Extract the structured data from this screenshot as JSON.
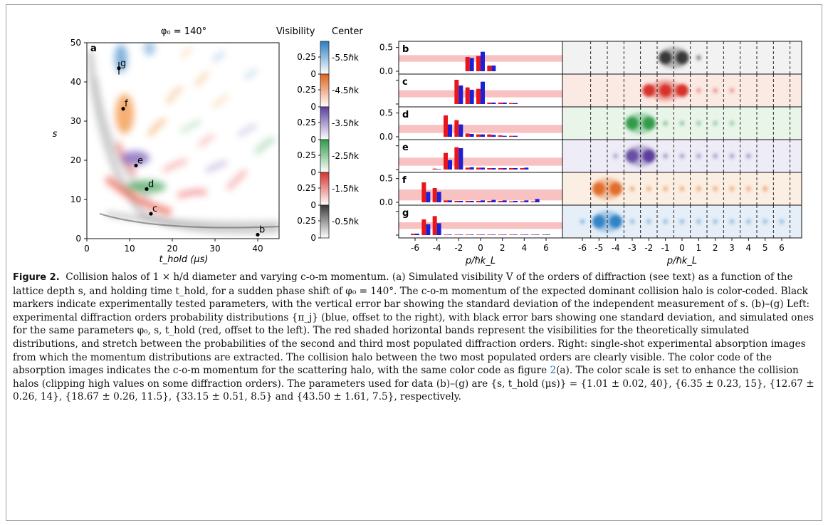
{
  "panel_a": {
    "title": "φ₀ = 140°",
    "panel_label": "a",
    "xlabel": "t_hold (μs)",
    "ylabel": "s",
    "x_ticks": [
      "0",
      "10",
      "20",
      "30",
      "40"
    ],
    "y_ticks": [
      "0",
      "10",
      "20",
      "30",
      "40",
      "50"
    ],
    "markers": [
      {
        "label": "b",
        "t_hold_us": 40,
        "s": 1.01,
        "s_err": 0.02
      },
      {
        "label": "c",
        "t_hold_us": 15,
        "s": 6.35,
        "s_err": 0.23
      },
      {
        "label": "d",
        "t_hold_us": 14,
        "s": 12.67,
        "s_err": 0.26
      },
      {
        "label": "e",
        "t_hold_us": 11.5,
        "s": 18.67,
        "s_err": 0.26
      },
      {
        "label": "f",
        "t_hold_us": 8.5,
        "s": 33.15,
        "s_err": 0.51
      },
      {
        "label": "g",
        "t_hold_us": 7.5,
        "s": 43.5,
        "s_err": 1.61
      }
    ]
  },
  "colorbar": {
    "header_left": "Visibility",
    "header_right": "Center",
    "bands": [
      {
        "center": "-5.5ℏk",
        "color": "#2a7ec2"
      },
      {
        "center": "-4.5ℏk",
        "color": "#e0641c"
      },
      {
        "center": "-3.5ℏk",
        "color": "#5b3e9c"
      },
      {
        "center": "-2.5ℏk",
        "color": "#2e9a48"
      },
      {
        "center": "-1.5ℏk",
        "color": "#d8312b"
      },
      {
        "center": "-0.5ℏk",
        "color": "#3a3a3a"
      }
    ],
    "tick_top": "0.25",
    "tick_zero": "0"
  },
  "chart_data": {
    "type": "bar",
    "xlabel": "p/ℏk_L",
    "x": [
      -6,
      -5,
      -4,
      -3,
      -2,
      -1,
      0,
      1,
      2,
      3,
      4,
      5,
      6
    ],
    "x_tick_labels": [
      "-6",
      "-4",
      "-2",
      "0",
      "2",
      "4",
      "6"
    ],
    "y_tick_labels": [
      "0.5",
      "0.0"
    ],
    "ylim": [
      0,
      0.6
    ],
    "series_colors": {
      "simulated": "#e8161b",
      "experimental": "#1f1fd6"
    },
    "panels": [
      {
        "label": "b",
        "band": [
          0.2,
          0.34
        ],
        "simulated": [
          0,
          0,
          0,
          0,
          0,
          0.3,
          0.32,
          0.12,
          0,
          0,
          0,
          0,
          0
        ],
        "experimental": [
          0,
          0,
          0,
          0,
          0,
          0.28,
          0.41,
          0.12,
          0,
          0,
          0,
          0,
          0
        ]
      },
      {
        "label": "c",
        "band": [
          0.14,
          0.29
        ],
        "simulated": [
          0,
          0,
          0,
          0,
          0.51,
          0.35,
          0.32,
          0.03,
          0.03,
          0.02,
          0,
          0,
          0
        ],
        "experimental": [
          0,
          0,
          0,
          0,
          0.39,
          0.3,
          0.47,
          0.03,
          0.03,
          0.02,
          0,
          0,
          0
        ]
      },
      {
        "label": "d",
        "band": [
          0.08,
          0.25
        ],
        "simulated": [
          0,
          0,
          0,
          0.45,
          0.35,
          0.07,
          0.05,
          0.05,
          0.03,
          0.02,
          0,
          0,
          0
        ],
        "experimental": [
          0,
          0,
          0,
          0.26,
          0.26,
          0.06,
          0.05,
          0.04,
          0.02,
          0.02,
          0,
          0,
          0
        ]
      },
      {
        "label": "e",
        "band": [
          0.08,
          0.25
        ],
        "simulated": [
          0,
          0,
          0.02,
          0.35,
          0.47,
          0.04,
          0.04,
          0.03,
          0.03,
          0.03,
          0.03,
          0,
          0
        ],
        "experimental": [
          0,
          0,
          0.01,
          0.2,
          0.45,
          0.05,
          0.04,
          0.03,
          0.03,
          0.03,
          0.04,
          0,
          0
        ]
      },
      {
        "label": "f",
        "band": [
          0.04,
          0.27
        ],
        "simulated": [
          0,
          0.42,
          0.3,
          0.04,
          0.03,
          0.03,
          0.03,
          0.03,
          0.03,
          0.02,
          0.02,
          0.02,
          0
        ],
        "experimental": [
          0,
          0.22,
          0.22,
          0.04,
          0.03,
          0.03,
          0.04,
          0.05,
          0.04,
          0.03,
          0.04,
          0.07,
          0
        ],
        "offset_first": -7
      },
      {
        "label": "g",
        "band": [
          0.13,
          0.27
        ],
        "simulated": [
          0.03,
          0.33,
          0.4,
          0.01,
          0.01,
          0.01,
          0.01,
          0.01,
          0.01,
          0.01,
          0.01,
          0.01,
          0.01
        ],
        "experimental": [
          0.03,
          0.23,
          0.25,
          0.01,
          0.01,
          0.01,
          0.01,
          0.01,
          0.01,
          0.01,
          0.01,
          0.01,
          0.01
        ]
      }
    ]
  },
  "images": {
    "xlabel": "p/ℏk_L",
    "x_ticks": [
      "-6",
      "-5",
      "-4",
      "-3",
      "-2",
      "-1",
      "0",
      "1",
      "2",
      "3",
      "4",
      "5",
      "6"
    ]
  },
  "caption": {
    "label": "Figure 2.",
    "text_before_ref": "Collision halos of 1 × h/d diameter and varying c-o-m momentum. (a) Simulated visibility V of the orders of diffraction (see text) as a function of the lattice depth s, and holding time t_hold, for a sudden phase shift of φ₀ = 140°. The c-o-m momentum of the expected dominant collision halo is color-coded. Black markers indicate experimentally tested parameters, with the vertical error bar showing the standard deviation of the independent measurement of s. (b)–(g) Left: experimental diffraction orders probability distributions {π_j} (blue, offset to the right), with black error bars showing one standard deviation, and simulated ones for the same parameters φ₀, s, t_hold (red, offset to the left). The red shaded horizontal bands represent the visibilities for the theoretically simulated distributions, and stretch between the probabilities of the second and third most populated diffraction orders. Right: single-shot experimental absorption images from which the momentum distributions are extracted. The collision halo between the two most populated orders are clearly visible. The color code of the absorption images indicates the c-o-m momentum for the scattering halo, with the same color code as figure ",
    "ref": "2",
    "text_after_ref": "(a). The color scale is set to enhance the collision halos (clipping high values on some diffraction orders). The parameters used for data (b)–(g) are {s, t_hold (μs)} = {1.01 ± 0.02, 40}, {6.35 ± 0.23, 15}, {12.67 ± 0.26, 14}, {18.67 ± 0.26, 11.5}, {33.15 ± 0.51, 8.5} and {43.50 ± 1.61, 7.5}, respectively."
  }
}
